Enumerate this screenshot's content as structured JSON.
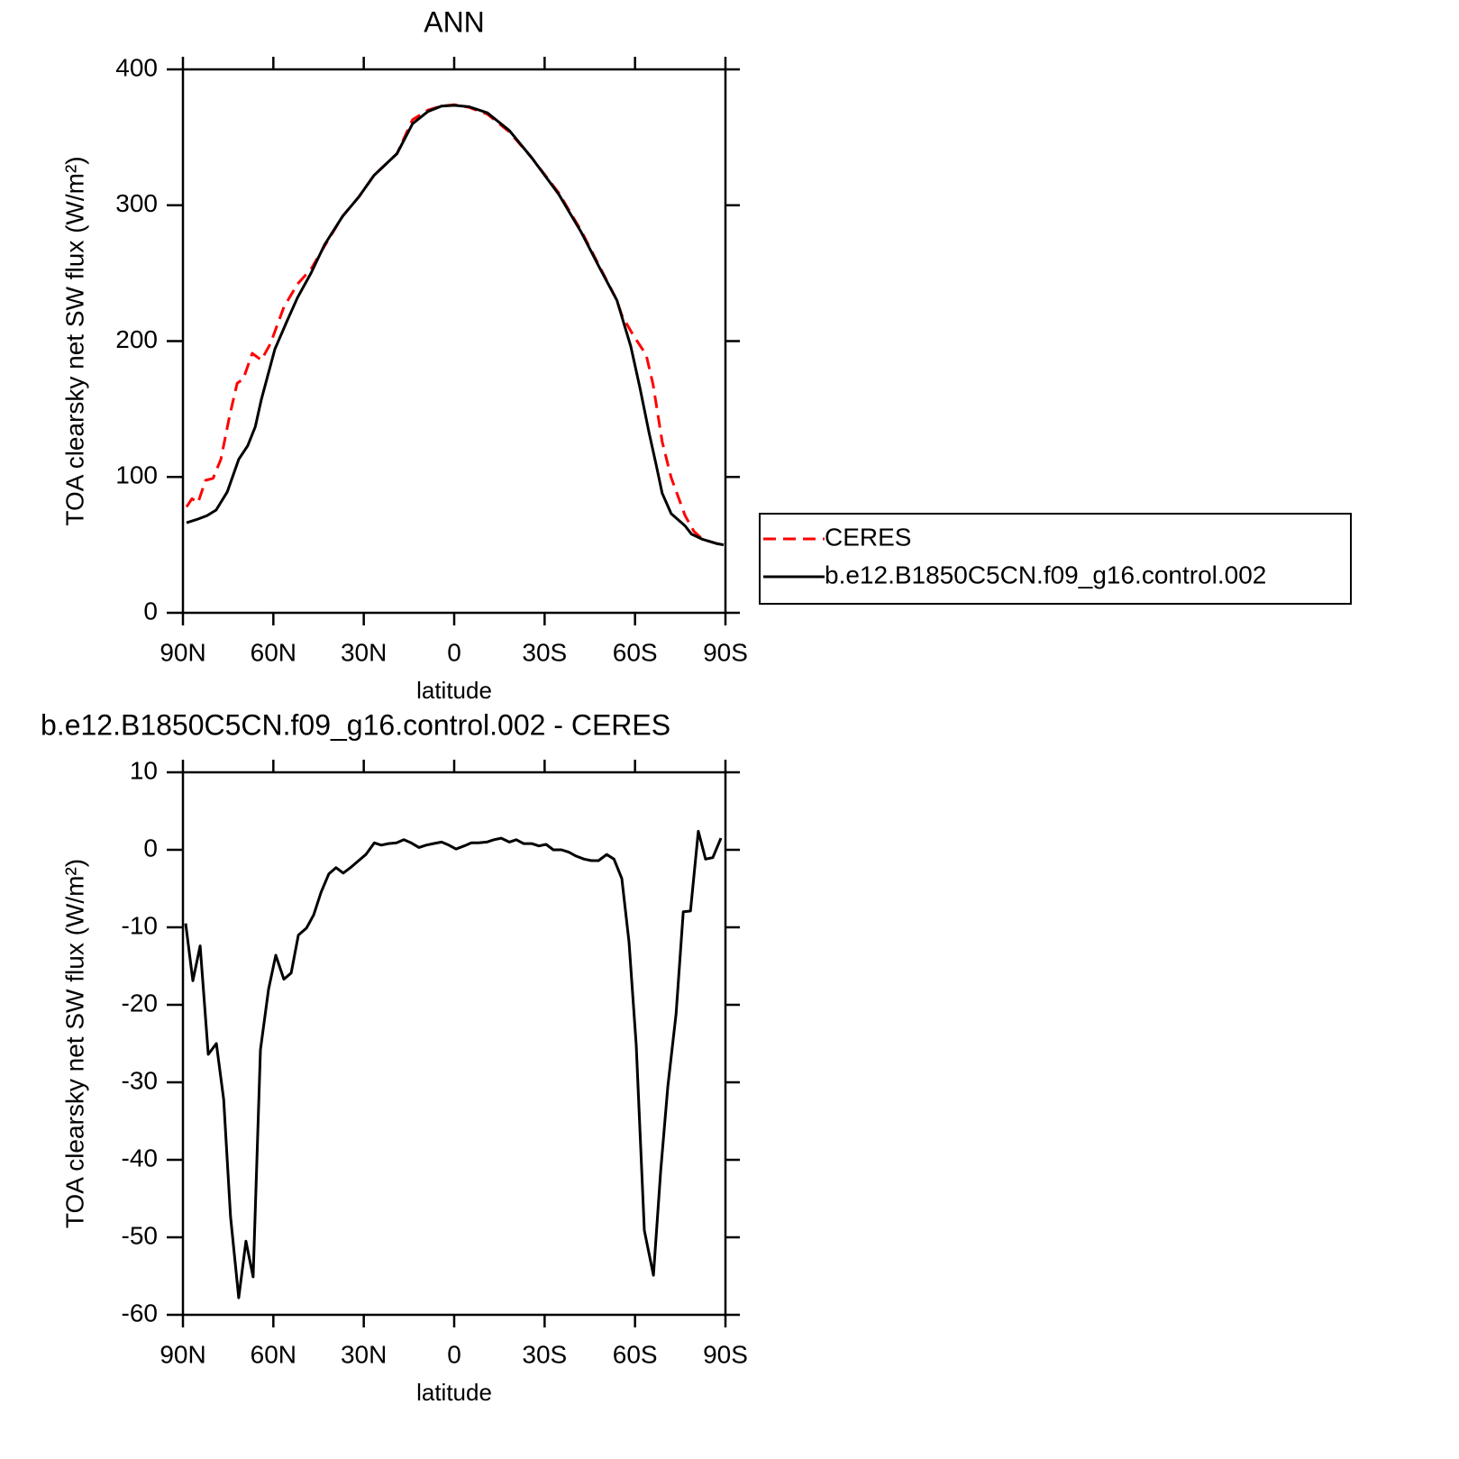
{
  "chart_data": [
    {
      "type": "line",
      "title": "ANN",
      "x_label": "latitude",
      "y_label": "TOA clearsky net SW flux (W/m²)",
      "xlim": [
        90,
        -90
      ],
      "xticks": [
        {
          "value": 90,
          "label": "90N"
        },
        {
          "value": 60,
          "label": "60N"
        },
        {
          "value": 30,
          "label": "30N"
        },
        0,
        {
          "value": -30,
          "label": "30S"
        },
        {
          "value": -60,
          "label": "60S"
        },
        {
          "value": -90,
          "label": "90S"
        }
      ],
      "ylim": [
        0,
        400
      ],
      "yticks": [
        0,
        100,
        200,
        300,
        400
      ],
      "legend": "right",
      "series": [
        {
          "name": "CERES",
          "color": "#ff0000",
          "style": "dashed",
          "x": [
            88.8,
            87,
            85,
            82.5,
            80,
            77.4,
            74.5,
            72,
            70,
            67,
            64,
            61,
            56.5,
            52,
            47.5,
            43,
            37,
            31.7,
            26.6,
            19,
            13.8,
            8.7,
            4.2,
            0,
            -5,
            -11,
            -18.3,
            -25.7,
            -34.7,
            -42.2,
            -48,
            -54,
            -55.6,
            -59.5,
            -63.7,
            -66,
            -69,
            -72,
            -76.6,
            -79.5,
            -82.5,
            -87,
            -89.4
          ],
          "values": [
            78,
            84,
            81,
            97.5,
            99,
            113,
            145,
            169,
            172,
            191,
            186,
            198,
            225,
            242,
            253,
            270,
            292,
            306,
            322,
            338,
            363,
            370,
            373,
            374,
            372,
            367,
            354,
            335,
            309,
            281,
            256,
            230,
            219,
            204,
            190,
            168,
            126,
            99.5,
            71.6,
            60,
            54,
            51,
            50
          ]
        },
        {
          "name": "b.e12.B1850C5CN.f09_g16.control.002",
          "color": "#000000",
          "style": "solid",
          "x": [
            88.8,
            85,
            82,
            79,
            75.3,
            71.5,
            68.5,
            66,
            64,
            59.5,
            55.6,
            52,
            47.5,
            43,
            37,
            31.7,
            26.6,
            19,
            13.8,
            8.7,
            4.2,
            0,
            -5,
            -11,
            -18.3,
            -25.7,
            -34.7,
            -42.2,
            -48,
            -54,
            -58.6,
            -61.6,
            -64.6,
            -67,
            -69,
            -72,
            -76.6,
            -78.7,
            -82.5,
            -87,
            -89.4
          ],
          "values": [
            66.3,
            69,
            71.6,
            75.6,
            89,
            113,
            123,
            137,
            157,
            194,
            214,
            232,
            250,
            271,
            292,
            306,
            322,
            338,
            360,
            369,
            373,
            373.5,
            372.5,
            368,
            355,
            335,
            308,
            280,
            255,
            230,
            196,
            166,
            133,
            109,
            88,
            73,
            64,
            58,
            54,
            51,
            50
          ]
        }
      ]
    },
    {
      "type": "line",
      "title": "b.e12.B1850C5CN.f09_g16.control.002 - CERES",
      "x_label": "latitude",
      "y_label": "TOA clearsky net SW flux (W/m²)",
      "xlim": [
        90,
        -90
      ],
      "xticks": [
        {
          "value": 90,
          "label": "90N"
        },
        {
          "value": 60,
          "label": "60N"
        },
        {
          "value": 30,
          "label": "30N"
        },
        0,
        {
          "value": -30,
          "label": "30S"
        },
        {
          "value": -60,
          "label": "60S"
        },
        {
          "value": -90,
          "label": "90S"
        }
      ],
      "ylim": [
        -60,
        10
      ],
      "yticks": [
        -60,
        -50,
        -40,
        -30,
        -20,
        -10,
        0,
        10
      ],
      "color": "#000000",
      "x": [
        89.1,
        86.7,
        84.3,
        81.6,
        78.9,
        76.5,
        74.2,
        71.5,
        69.1,
        66.7,
        64.3,
        61.6,
        59.2,
        56.5,
        54.1,
        51.7,
        49,
        46.6,
        44.2,
        41.6,
        39.2,
        36.8,
        34.1,
        31.7,
        29.3,
        26.5,
        24.2,
        21.8,
        19.1,
        16.7,
        14.3,
        11.7,
        9.3,
        6.9,
        4.2,
        1.8,
        -0.6,
        -3.3,
        -5.7,
        -8.1,
        -10.8,
        -13.2,
        -15.6,
        -18.3,
        -20.6,
        -23,
        -25.7,
        -28.1,
        -30.5,
        -32.9,
        -35.6,
        -38,
        -40.4,
        -43.1,
        -45.5,
        -47.9,
        -50.6,
        -53,
        -55.6,
        -58,
        -60.4,
        -63.1,
        -66.1,
        -68.5,
        -70.9,
        -73.6,
        -76,
        -78.4,
        -81,
        -83.4,
        -85.8,
        -88.5
      ],
      "values": [
        -9.5,
        -16.9,
        -12.4,
        -26.4,
        -25,
        -32.2,
        -47.3,
        -57.8,
        -50.5,
        -55.1,
        -25.8,
        -18,
        -13.6,
        -16.7,
        -15.9,
        -11,
        -10.1,
        -8.4,
        -5.5,
        -3.1,
        -2.3,
        -3,
        -2.2,
        -1.4,
        -0.6,
        0.9,
        0.6,
        0.8,
        0.9,
        1.3,
        0.9,
        0.3,
        0.6,
        0.8,
        1.0,
        0.6,
        0.1,
        0.5,
        0.9,
        0.9,
        1.0,
        1.3,
        1.5,
        1.0,
        1.3,
        0.8,
        0.8,
        0.5,
        0.7,
        0.0,
        0.0,
        -0.3,
        -0.8,
        -1.2,
        -1.4,
        -1.4,
        -0.6,
        -1.2,
        -3.7,
        -11.9,
        -25.2,
        -49.1,
        -54.9,
        -41.5,
        -30.5,
        -21.2,
        -8,
        -7.9,
        2.4,
        -1.2,
        -1,
        1.5
      ]
    }
  ]
}
